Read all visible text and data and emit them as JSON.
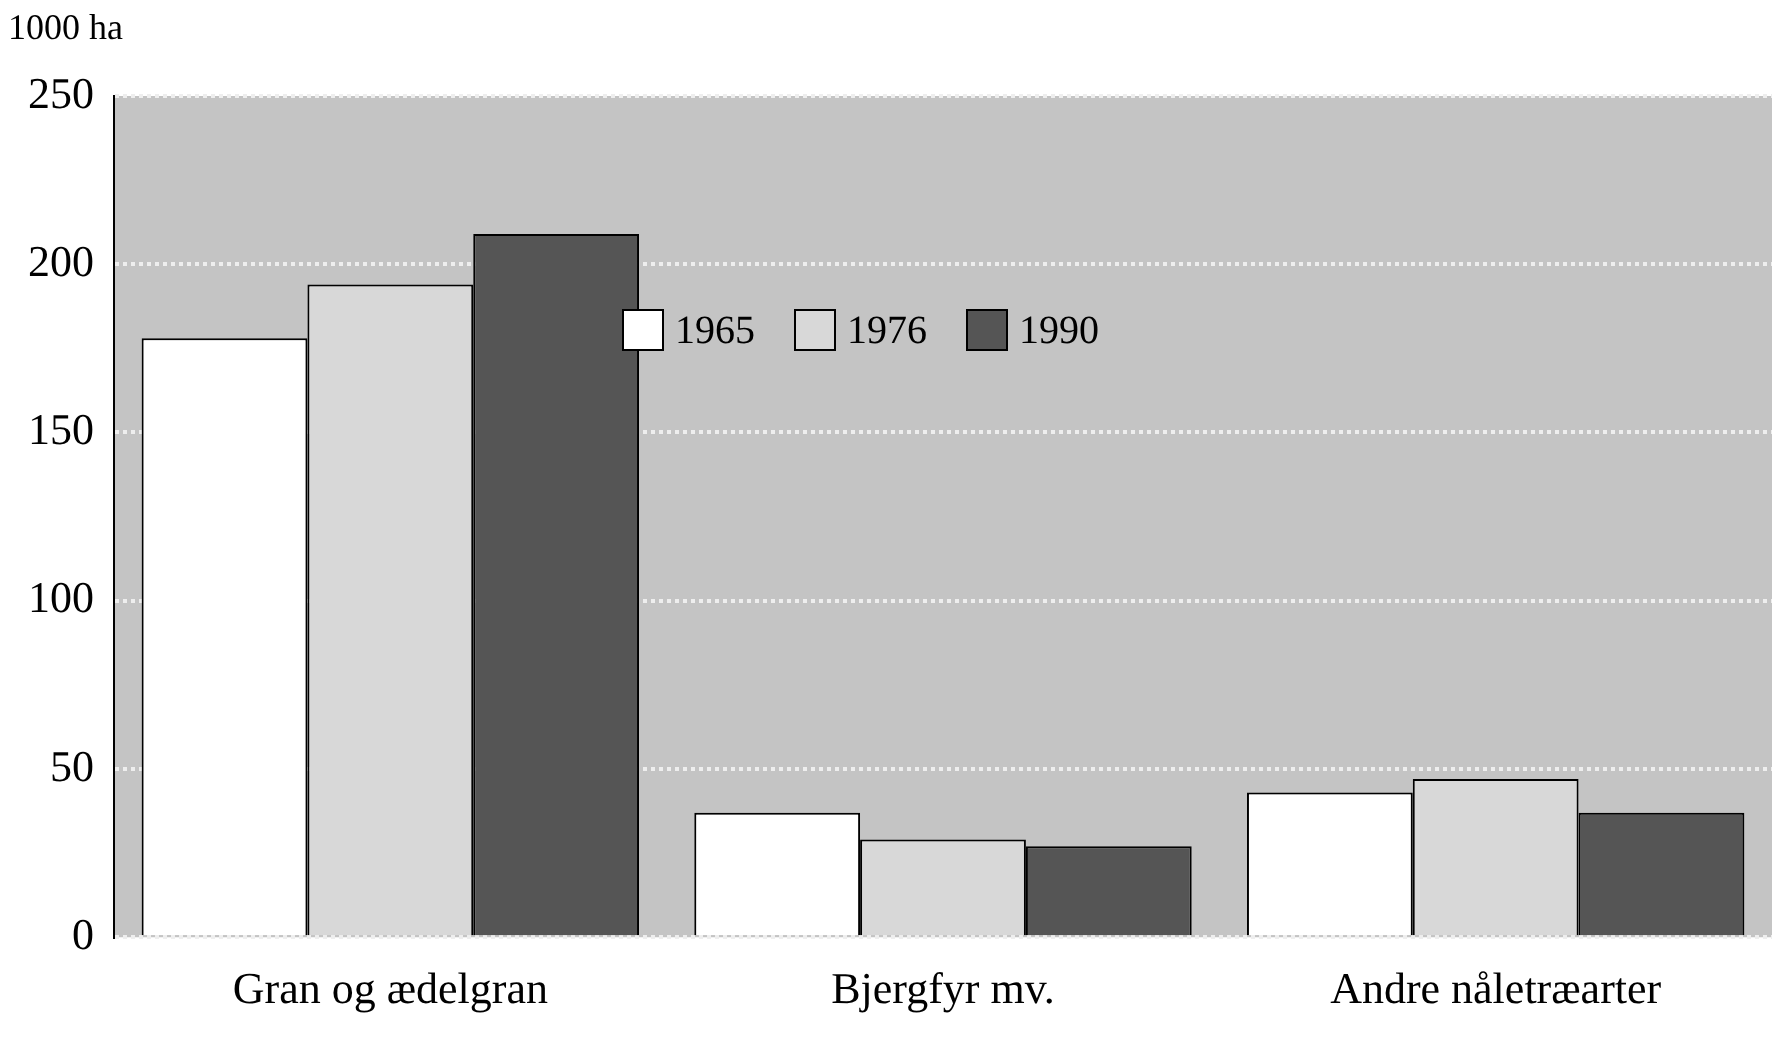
{
  "chart_data": {
    "type": "bar",
    "ylabel": "1000 ha",
    "categories": [
      "Gran og ædelgran",
      "Bjergfyr mv.",
      "Andre nåletræarter"
    ],
    "series": [
      {
        "name": "1965",
        "color": "#ffffff",
        "values": [
          178,
          37,
          43
        ]
      },
      {
        "name": "1976",
        "color": "#d8d8d8",
        "values": [
          194,
          29,
          47
        ]
      },
      {
        "name": "1990",
        "color": "#555555",
        "values": [
          209,
          27,
          37
        ]
      }
    ],
    "ylim": [
      0,
      250
    ],
    "yticks": [
      0,
      50,
      100,
      150,
      200,
      250
    ],
    "grid": "y",
    "legend": "top"
  }
}
